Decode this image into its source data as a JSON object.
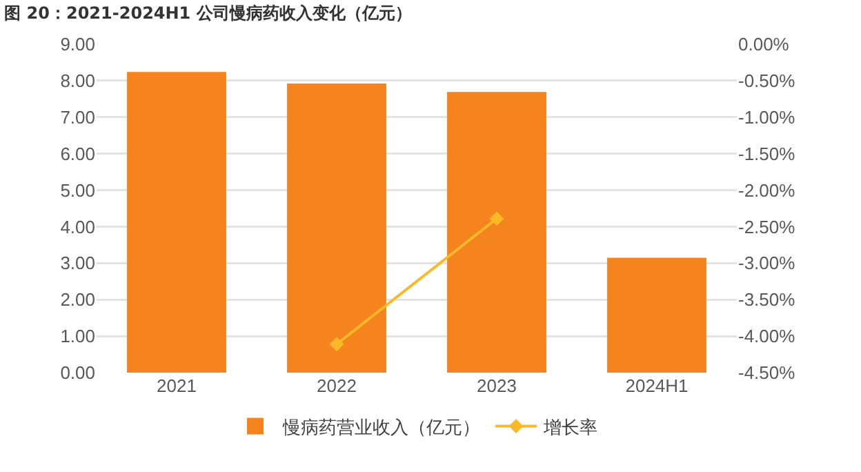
{
  "chart_data": {
    "type": "bar",
    "title": "图 20：2021-2024H1 公司慢病药收入变化（亿元）",
    "categories": [
      "2021",
      "2022",
      "2023",
      "2024H1"
    ],
    "series": [
      {
        "name": "慢病药营业收入（亿元）",
        "color": "#f5841f",
        "values": [
          8.24,
          7.92,
          7.69,
          3.15
        ]
      },
      {
        "name": "增长率",
        "type": "line",
        "axis": "y2",
        "color": "#fbb928",
        "marker": "diamond",
        "values": [
          null,
          -4.11,
          -2.39,
          null
        ]
      }
    ],
    "ylim": [
      0,
      9
    ],
    "yticks": [
      {
        "value": 0,
        "label": "0.00"
      },
      {
        "value": 1,
        "label": "1.00"
      },
      {
        "value": 2,
        "label": "2.00"
      },
      {
        "value": 3,
        "label": "3.00"
      },
      {
        "value": 4,
        "label": "4.00"
      },
      {
        "value": 5,
        "label": "5.00"
      },
      {
        "value": 6,
        "label": "6.00"
      },
      {
        "value": 7,
        "label": "7.00"
      },
      {
        "value": 8,
        "label": "8.00"
      },
      {
        "value": 9,
        "label": "9.00"
      }
    ],
    "y2lim": [
      -4.5,
      0
    ],
    "y2ticks": [
      {
        "value": 0,
        "label": "0.00%"
      },
      {
        "value": -0.5,
        "label": "-0.50%"
      },
      {
        "value": -1,
        "label": "-1.00%"
      },
      {
        "value": -1.5,
        "label": "-1.50%"
      },
      {
        "value": -2,
        "label": "-2.00%"
      },
      {
        "value": -2.5,
        "label": "-2.50%"
      },
      {
        "value": -3,
        "label": "-3.00%"
      },
      {
        "value": -3.5,
        "label": "-3.50%"
      },
      {
        "value": -4,
        "label": "-4.00%"
      },
      {
        "value": -4.5,
        "label": "-4.50%"
      }
    ],
    "grid": "y",
    "legend": "bottom"
  }
}
